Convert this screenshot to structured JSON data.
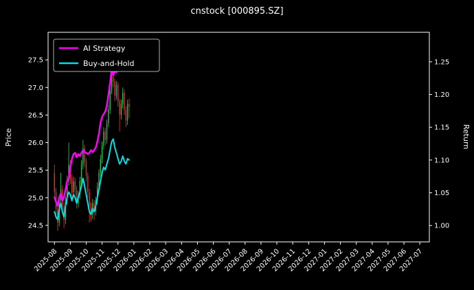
{
  "title": "cnstock [000895.SZ]",
  "chart_data": {
    "type": "candlestick",
    "title": "cnstock [000895.SZ]",
    "xlabel": "",
    "ylabel_left": "Price",
    "ylabel_right": "Return",
    "grid": false,
    "x_tick_labels": [
      "2025-08",
      "2025-09",
      "2025-10",
      "2025-11",
      "2025-12",
      "2026-01",
      "2026-02",
      "2026-03",
      "2026-04",
      "2026-05",
      "2026-06",
      "2026-07",
      "2026-08",
      "2026-09",
      "2026-10",
      "2026-11",
      "2026-12",
      "2027-01",
      "2027-02",
      "2027-03",
      "2027-04",
      "2027-05",
      "2027-06",
      "2027-07"
    ],
    "xlim": [
      -0.4,
      23.6
    ],
    "price_axis": {
      "ticks": [
        24.5,
        25.0,
        25.5,
        26.0,
        26.5,
        27.0,
        27.5
      ],
      "lim": [
        24.2,
        28.0
      ]
    },
    "return_axis": {
      "ticks": [
        1.0,
        1.05,
        1.1,
        1.15,
        1.2,
        1.25
      ],
      "lim": [
        0.975,
        1.295
      ]
    },
    "legend": {
      "position": "upper-left",
      "entries": [
        {
          "label": "AI Strategy",
          "color": "#ff00ff"
        },
        {
          "label": "Buy-and-Hold",
          "color": "#00e0e6"
        }
      ]
    },
    "colors": {
      "background": "#000000",
      "text": "#ffffff",
      "spine": "#ffffff",
      "candle_up": "#2ebd4e",
      "candle_down": "#e03131"
    },
    "candles": {
      "x0": 0,
      "dx": 0.1,
      "x_unit": "months-from-2025-08",
      "ohlc": [
        [
          25.45,
          25.6,
          25.0,
          25.1
        ],
        [
          25.1,
          25.18,
          24.7,
          24.8
        ],
        [
          24.8,
          24.88,
          24.4,
          24.55
        ],
        [
          24.55,
          25.02,
          24.48,
          24.95
        ],
        [
          24.95,
          25.45,
          24.88,
          25.15
        ],
        [
          25.15,
          25.22,
          24.75,
          24.85
        ],
        [
          24.85,
          24.92,
          24.45,
          24.6
        ],
        [
          24.6,
          25.02,
          24.52,
          24.95
        ],
        [
          24.95,
          25.4,
          24.88,
          25.3
        ],
        [
          25.3,
          26.0,
          25.22,
          25.6
        ],
        [
          25.6,
          25.68,
          25.25,
          25.35
        ],
        [
          25.35,
          25.42,
          24.98,
          25.1
        ],
        [
          25.1,
          25.38,
          25.02,
          25.3
        ],
        [
          25.3,
          25.36,
          25.05,
          25.15
        ],
        [
          25.15,
          25.22,
          24.8,
          24.9
        ],
        [
          24.9,
          25.12,
          24.82,
          25.05
        ],
        [
          25.05,
          25.38,
          24.98,
          25.3
        ],
        [
          25.3,
          25.68,
          25.22,
          25.6
        ],
        [
          25.6,
          26.05,
          25.52,
          25.9
        ],
        [
          25.9,
          25.96,
          25.55,
          25.65
        ],
        [
          25.65,
          25.72,
          25.3,
          25.4
        ],
        [
          25.4,
          25.46,
          25.0,
          25.1
        ],
        [
          25.1,
          25.16,
          24.55,
          24.85
        ],
        [
          24.85,
          24.92,
          24.58,
          24.7
        ],
        [
          24.7,
          24.98,
          24.62,
          24.9
        ],
        [
          24.9,
          24.96,
          24.6,
          24.75
        ],
        [
          24.75,
          25.02,
          24.68,
          24.95
        ],
        [
          24.95,
          25.28,
          24.88,
          25.2
        ],
        [
          25.2,
          25.52,
          25.12,
          25.45
        ],
        [
          25.45,
          25.78,
          25.38,
          25.7
        ],
        [
          25.7,
          26.02,
          25.62,
          25.95
        ],
        [
          25.95,
          26.28,
          25.88,
          26.2
        ],
        [
          26.2,
          26.26,
          25.95,
          26.05
        ],
        [
          26.05,
          26.42,
          25.98,
          26.35
        ],
        [
          26.35,
          26.68,
          26.28,
          26.6
        ],
        [
          26.6,
          27.02,
          26.52,
          26.95
        ],
        [
          26.95,
          27.55,
          26.88,
          27.3
        ],
        [
          27.3,
          27.36,
          27.0,
          27.1
        ],
        [
          27.1,
          27.16,
          26.75,
          26.85
        ],
        [
          26.85,
          27.12,
          26.78,
          27.05
        ],
        [
          27.05,
          27.1,
          26.65,
          26.75
        ],
        [
          26.75,
          26.8,
          26.2,
          26.5
        ],
        [
          26.5,
          26.78,
          26.42,
          26.7
        ],
        [
          26.7,
          27.0,
          26.62,
          26.9
        ],
        [
          26.9,
          26.96,
          26.5,
          26.6
        ],
        [
          26.6,
          26.66,
          26.28,
          26.4
        ],
        [
          26.4,
          26.78,
          26.32,
          26.7
        ],
        [
          26.7,
          26.8,
          26.45,
          26.65
        ]
      ]
    },
    "series": [
      {
        "name": "AI Strategy",
        "axis": "return",
        "color": "#ff00ff",
        "width": 2.5,
        "x0": 0,
        "dx": 0.1,
        "values": [
          1.043,
          1.036,
          1.03,
          1.043,
          1.049,
          1.038,
          1.043,
          1.055,
          1.068,
          1.072,
          1.089,
          1.102,
          1.109,
          1.111,
          1.104,
          1.109,
          1.106,
          1.111,
          1.115,
          1.112,
          1.111,
          1.109,
          1.111,
          1.115,
          1.112,
          1.115,
          1.119,
          1.128,
          1.14,
          1.157,
          1.166,
          1.17,
          1.174,
          1.183,
          1.2,
          1.217,
          1.238,
          1.23,
          1.236,
          1.234,
          1.24
        ]
      },
      {
        "name": "Buy-and-Hold",
        "axis": "return",
        "color": "#00e0e6",
        "width": 2.0,
        "x0": 0,
        "dx": 0.1,
        "values": [
          1.021,
          1.013,
          1.009,
          1.024,
          1.034,
          1.021,
          1.013,
          1.03,
          1.043,
          1.051,
          1.047,
          1.038,
          1.047,
          1.043,
          1.034,
          1.043,
          1.051,
          1.06,
          1.072,
          1.06,
          1.047,
          1.034,
          1.021,
          1.017,
          1.026,
          1.021,
          1.03,
          1.043,
          1.055,
          1.068,
          1.081,
          1.089,
          1.085,
          1.094,
          1.102,
          1.115,
          1.128,
          1.132,
          1.119,
          1.111,
          1.102,
          1.094,
          1.098,
          1.106,
          1.098,
          1.094,
          1.102,
          1.1
        ]
      }
    ]
  }
}
